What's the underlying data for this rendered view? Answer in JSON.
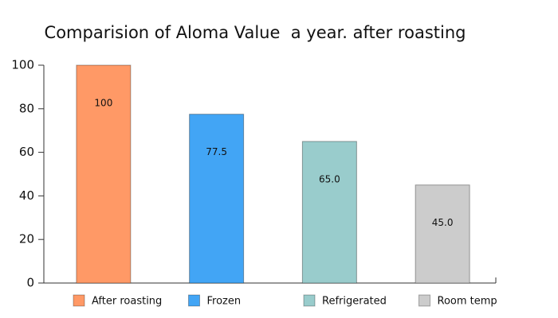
{
  "chart_data": {
    "type": "bar",
    "title": "Comparision of Aloma Value  a year. after roasting",
    "categories": [
      "After roasting",
      "Frozen",
      "Refrigerated",
      "Room temp"
    ],
    "values": [
      100,
      77.5,
      65,
      45
    ],
    "value_labels": [
      "100",
      "77.5",
      "65.0",
      "45.0"
    ],
    "colors": [
      "#ff9966",
      "#42a5f5",
      "#99cccc",
      "#cccccc"
    ],
    "ylim": [
      0,
      100
    ],
    "yticks": [
      0,
      20,
      40,
      60,
      80,
      100
    ]
  }
}
